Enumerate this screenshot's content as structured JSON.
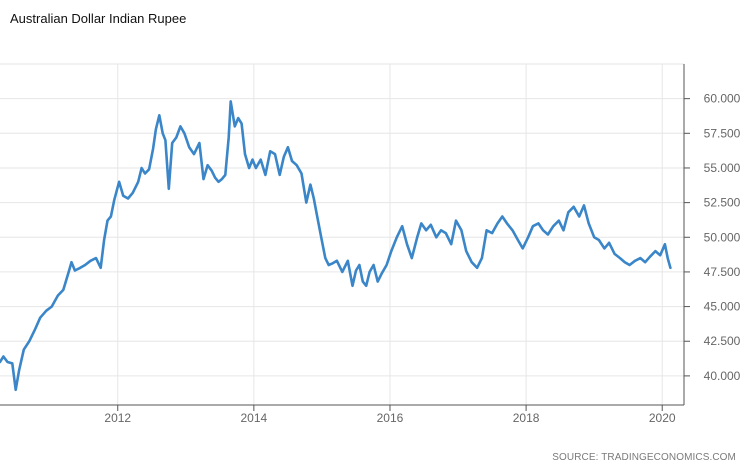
{
  "title": "Australian Dollar Indian Rupee",
  "source": "SOURCE: TRADINGECONOMICS.COM",
  "colors": {
    "line": "#3a86c8",
    "grid": "#e6e6e6",
    "axis": "#555555",
    "text": "#666666"
  },
  "chart_data": {
    "type": "line",
    "title": "Australian Dollar Indian Rupee",
    "xlabel": "",
    "ylabel": "",
    "x_ticks": [
      "2012",
      "2014",
      "2016",
      "2018",
      "2020"
    ],
    "y_ticks": [
      "40.000",
      "42.500",
      "45.000",
      "47.500",
      "50.000",
      "52.500",
      "55.000",
      "57.500",
      "60.000"
    ],
    "xlim": [
      2010.27,
      2020.32
    ],
    "ylim": [
      37.9,
      62.5
    ],
    "grid": true,
    "legend": "none",
    "y_axis_side": "right",
    "series": [
      {
        "x": [
          2010.27,
          2010.32,
          2010.38,
          2010.45,
          2010.5,
          2010.55,
          2010.62,
          2010.7,
          2010.78,
          2010.86,
          2010.95,
          2011.03,
          2011.12,
          2011.2,
          2011.28,
          2011.32,
          2011.37,
          2011.45,
          2011.52,
          2011.6,
          2011.68,
          2011.75,
          2011.8,
          2011.85,
          2011.9,
          2011.95,
          2012.02,
          2012.08,
          2012.15,
          2012.22,
          2012.3,
          2012.35,
          2012.4,
          2012.46,
          2012.52,
          2012.56,
          2012.61,
          2012.66,
          2012.7,
          2012.75,
          2012.8,
          2012.86,
          2012.92,
          2012.98,
          2013.05,
          2013.12,
          2013.2,
          2013.26,
          2013.32,
          2013.38,
          2013.43,
          2013.48,
          2013.53,
          2013.58,
          2013.63,
          2013.66,
          2013.72,
          2013.77,
          2013.82,
          2013.87,
          2013.93,
          2013.98,
          2014.03,
          2014.1,
          2014.17,
          2014.24,
          2014.31,
          2014.38,
          2014.44,
          2014.5,
          2014.56,
          2014.63,
          2014.7,
          2014.77,
          2014.83,
          2014.88,
          2014.93,
          2014.99,
          2015.05,
          2015.1,
          2015.15,
          2015.22,
          2015.3,
          2015.38,
          2015.45,
          2015.5,
          2015.55,
          2015.6,
          2015.65,
          2015.7,
          2015.76,
          2015.82,
          2015.88,
          2015.95,
          2016.02,
          2016.1,
          2016.18,
          2016.25,
          2016.32,
          2016.4,
          2016.46,
          2016.53,
          2016.6,
          2016.68,
          2016.75,
          2016.82,
          2016.9,
          2016.97,
          2017.05,
          2017.12,
          2017.2,
          2017.28,
          2017.35,
          2017.42,
          2017.5,
          2017.58,
          2017.65,
          2017.72,
          2017.8,
          2017.88,
          2017.95,
          2018.03,
          2018.1,
          2018.18,
          2018.25,
          2018.32,
          2018.4,
          2018.48,
          2018.55,
          2018.62,
          2018.7,
          2018.78,
          2018.85,
          2018.92,
          2019.0,
          2019.07,
          2019.15,
          2019.22,
          2019.3,
          2019.38,
          2019.45,
          2019.52,
          2019.6,
          2019.68,
          2019.75,
          2019.82,
          2019.9,
          2019.97,
          2020.04,
          2020.08,
          2020.12
        ],
        "y": [
          41.0,
          41.4,
          41.0,
          40.9,
          39.0,
          40.4,
          41.9,
          42.5,
          43.3,
          44.2,
          44.7,
          45.0,
          45.8,
          46.2,
          47.5,
          48.2,
          47.6,
          47.8,
          48.0,
          48.3,
          48.5,
          47.8,
          49.8,
          51.2,
          51.5,
          52.7,
          54.0,
          53.0,
          52.8,
          53.2,
          54.0,
          55.0,
          54.6,
          54.9,
          56.4,
          57.8,
          58.8,
          57.5,
          57.0,
          53.5,
          56.8,
          57.2,
          58.0,
          57.5,
          56.5,
          56.0,
          56.8,
          54.2,
          55.2,
          54.8,
          54.3,
          54.0,
          54.2,
          54.5,
          57.2,
          59.8,
          58.0,
          58.6,
          58.2,
          56.0,
          55.0,
          55.6,
          55.0,
          55.6,
          54.5,
          56.2,
          56.0,
          54.5,
          55.8,
          56.5,
          55.5,
          55.2,
          54.6,
          52.5,
          53.8,
          52.8,
          51.5,
          50.0,
          48.5,
          48.0,
          48.1,
          48.3,
          47.5,
          48.3,
          46.5,
          47.6,
          48.0,
          46.8,
          46.5,
          47.5,
          48.0,
          46.8,
          47.4,
          48.0,
          49.0,
          50.0,
          50.8,
          49.5,
          48.5,
          50.0,
          51.0,
          50.5,
          50.9,
          50.0,
          50.5,
          50.3,
          49.5,
          51.2,
          50.5,
          49.0,
          48.2,
          47.8,
          48.5,
          50.5,
          50.3,
          51.0,
          51.5,
          51.0,
          50.5,
          49.8,
          49.2,
          50.0,
          50.8,
          51.0,
          50.5,
          50.2,
          50.8,
          51.2,
          50.5,
          51.8,
          52.2,
          51.5,
          52.3,
          51.0,
          50.0,
          49.8,
          49.2,
          49.6,
          48.8,
          48.5,
          48.2,
          48.0,
          48.3,
          48.5,
          48.2,
          48.6,
          49.0,
          48.7,
          49.5,
          48.5,
          47.8
        ]
      }
    ]
  }
}
